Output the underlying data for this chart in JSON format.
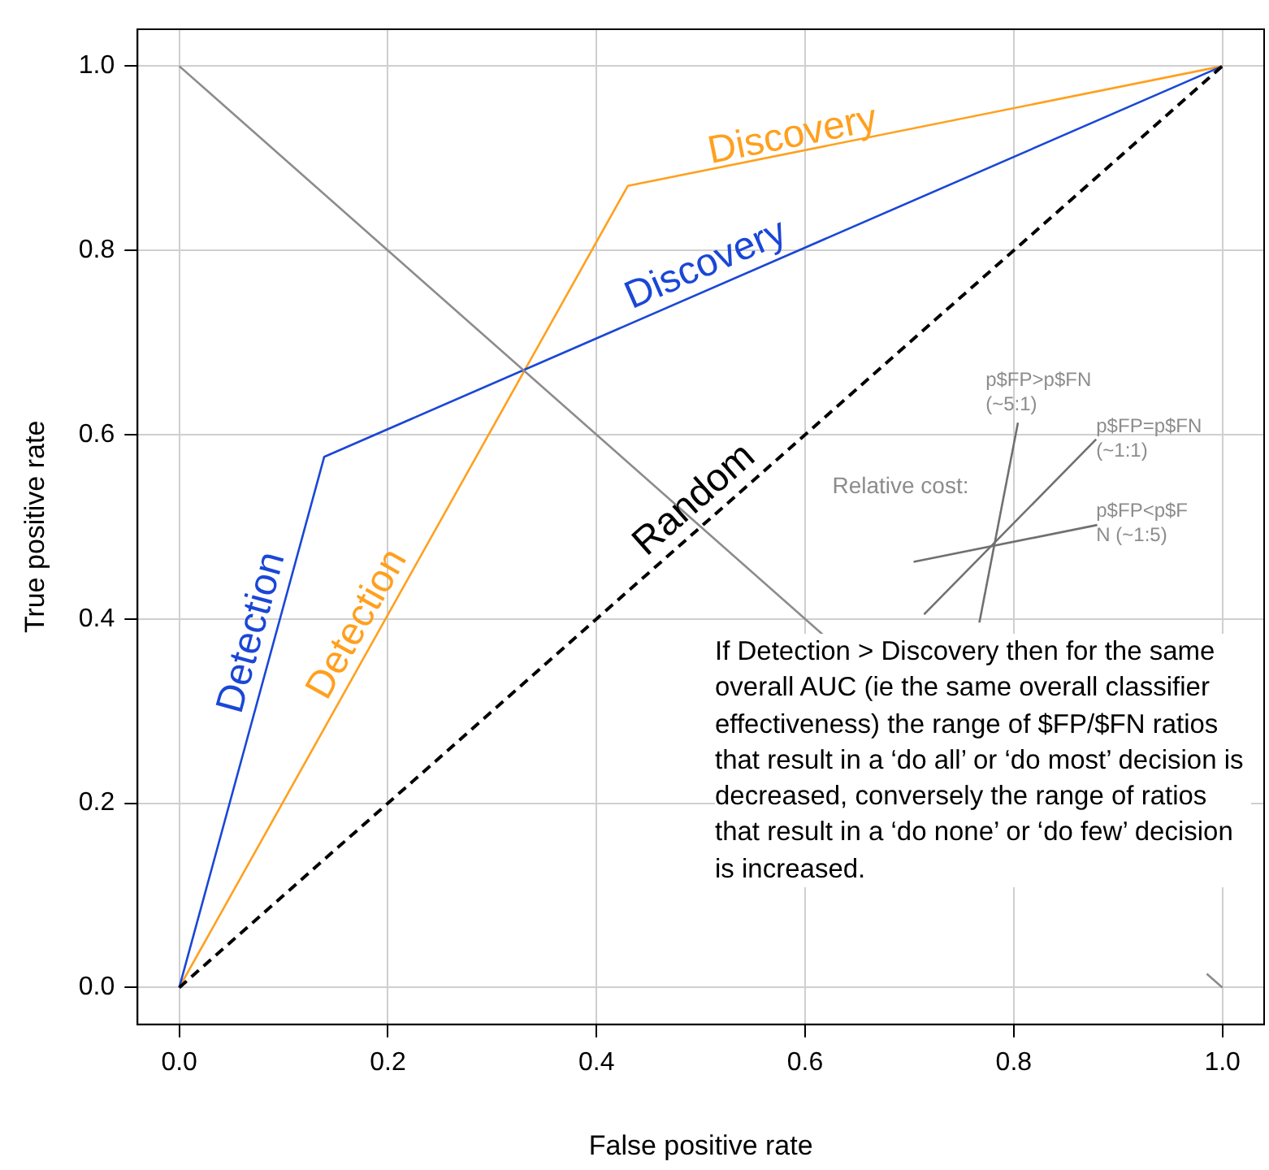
{
  "chart_data": {
    "type": "line",
    "xlabel": "False positive rate",
    "ylabel": "True positive rate",
    "xlim": [
      -0.04,
      1.04
    ],
    "ylim": [
      -0.04,
      1.04
    ],
    "xticks": [
      {
        "value": 0,
        "label": "0.0"
      },
      {
        "value": 0.2,
        "label": "0.2"
      },
      {
        "value": 0.4,
        "label": "0.4"
      },
      {
        "value": 0.6,
        "label": "0.6"
      },
      {
        "value": 0.8,
        "label": "0.8"
      },
      {
        "value": 1,
        "label": "1.0"
      }
    ],
    "yticks": [
      {
        "value": 0,
        "label": "0.0"
      },
      {
        "value": 0.2,
        "label": "0.2"
      },
      {
        "value": 0.4,
        "label": "0.4"
      },
      {
        "value": 0.6,
        "label": "0.6"
      },
      {
        "value": 0.8,
        "label": "0.8"
      },
      {
        "value": 1,
        "label": "1.0"
      }
    ],
    "grid": true,
    "legend": false,
    "marker": "none",
    "series": [
      {
        "color": "#8c8c8c",
        "x": [
          0,
          0.618,
          0.8,
          0.985,
          1
        ],
        "values": [
          1,
          0.382,
          null,
          0.015,
          0
        ]
      },
      {
        "color": "#000000",
        "line_style": "dashed",
        "x": [
          0,
          1
        ],
        "values": [
          0,
          1
        ]
      },
      {
        "color": "#1a47d6",
        "x": [
          0,
          0.139,
          1
        ],
        "values": [
          0,
          0.576,
          1
        ]
      },
      {
        "color": "#ffa01e",
        "x": [
          0,
          0.43,
          1
        ],
        "values": [
          0,
          0.87,
          1
        ]
      },
      {
        "color": "#707070",
        "x": [
          0.767,
          0.804
        ],
        "values": [
          0.396,
          0.613
        ]
      },
      {
        "color": "#707070",
        "x": [
          0.714,
          0.879
        ],
        "values": [
          0.405,
          0.595
        ]
      },
      {
        "color": "#707070",
        "x": [
          0.704,
          0.88
        ],
        "values": [
          0.462,
          0.502
        ]
      }
    ],
    "annotations": [
      "Detection",
      "Detection",
      "Discovery",
      "Discovery",
      "Random",
      "Relative cost:",
      "p$FP>p$FN (~5:1)",
      "p$FP=p$FN (~1:1)",
      "p$FP<p$FN (~1:5)",
      "If Detection > Discovery then for the same overall AUC (ie the same overall classifier effectiveness) the range of $FP/$FN ratios that result in a ‘do all’ or ‘do most’ decision is decreased, conversely the range of ratios that result in a ‘do none’ or ‘do few’ decision is increased."
    ]
  }
}
